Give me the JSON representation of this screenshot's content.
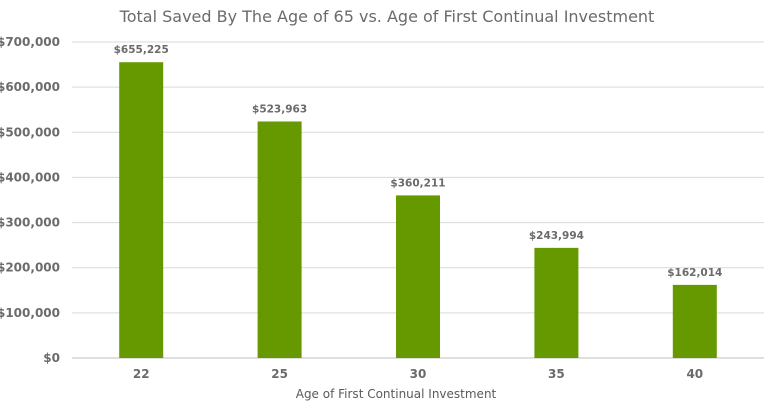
{
  "chart_data": {
    "type": "bar",
    "title": "Total Saved By The Age of 65 vs. Age of First Continual Investment",
    "xlabel": "Age of First Continual Investment",
    "ylabel": "",
    "categories": [
      "22",
      "25",
      "30",
      "35",
      "40"
    ],
    "values": [
      655225,
      523963,
      360211,
      243994,
      162014
    ],
    "data_labels": [
      "$655,225",
      "$523,963",
      "$360,211",
      "$243,994",
      "$162,014"
    ],
    "ylim": [
      0,
      700000
    ],
    "yticks": [
      0,
      100000,
      200000,
      300000,
      400000,
      500000,
      600000,
      700000
    ],
    "ytick_labels": [
      "$0",
      "$100,000",
      "$200,000",
      "$300,000",
      "$400,000",
      "$500,000",
      "$600,000",
      "$700,000"
    ],
    "grid": true,
    "legend": "none",
    "bar_color": "#669900"
  }
}
